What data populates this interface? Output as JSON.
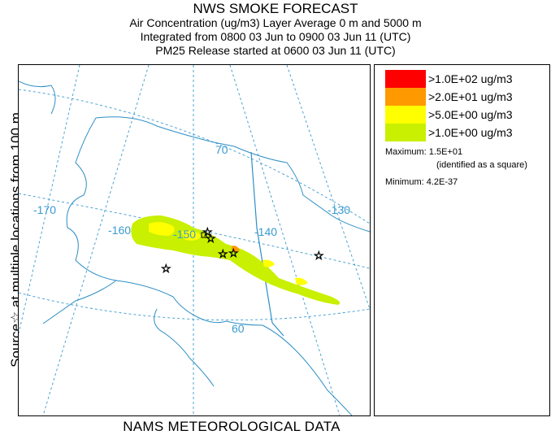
{
  "header": {
    "title": "NWS SMOKE FORECAST",
    "line1": "Air Concentration (ug/m3) Layer Average    0 m and  5000 m",
    "line2": "Integrated from 0800 03 Jun to 0900 03 Jun 11 (UTC)",
    "line3": "PM25 Release started at 0600 03 Jun 11 (UTC)"
  },
  "side_label": "Source☆ at multiple locations  from   100 m",
  "footer": "NAMS METEOROLOGICAL DATA",
  "map": {
    "lat_labels": [
      "70",
      "60"
    ],
    "lon_labels": [
      "-170",
      "-160",
      "-150",
      "-140",
      "-130"
    ],
    "colors": {
      "land_outline": "#2e8fc6",
      "graticule": "#3a9ad0",
      "contour_high": "#ffff00",
      "contour_low": "#c8f000"
    }
  },
  "legend": {
    "items": [
      {
        "color": "#ff0000",
        "label": ">1.0E+02 ug/m3"
      },
      {
        "color": "#ff9900",
        "label": ">2.0E+01 ug/m3"
      },
      {
        "color": "#ffff00",
        "label": ">5.0E+00 ug/m3"
      },
      {
        "color": "#c8f000",
        "label": ">1.0E+00 ug/m3"
      }
    ],
    "maximum_label": "Maximum: 1.5E+01",
    "maximum_note": "(identified as a square)",
    "minimum_label": "Minimum: 4.2E-37"
  }
}
